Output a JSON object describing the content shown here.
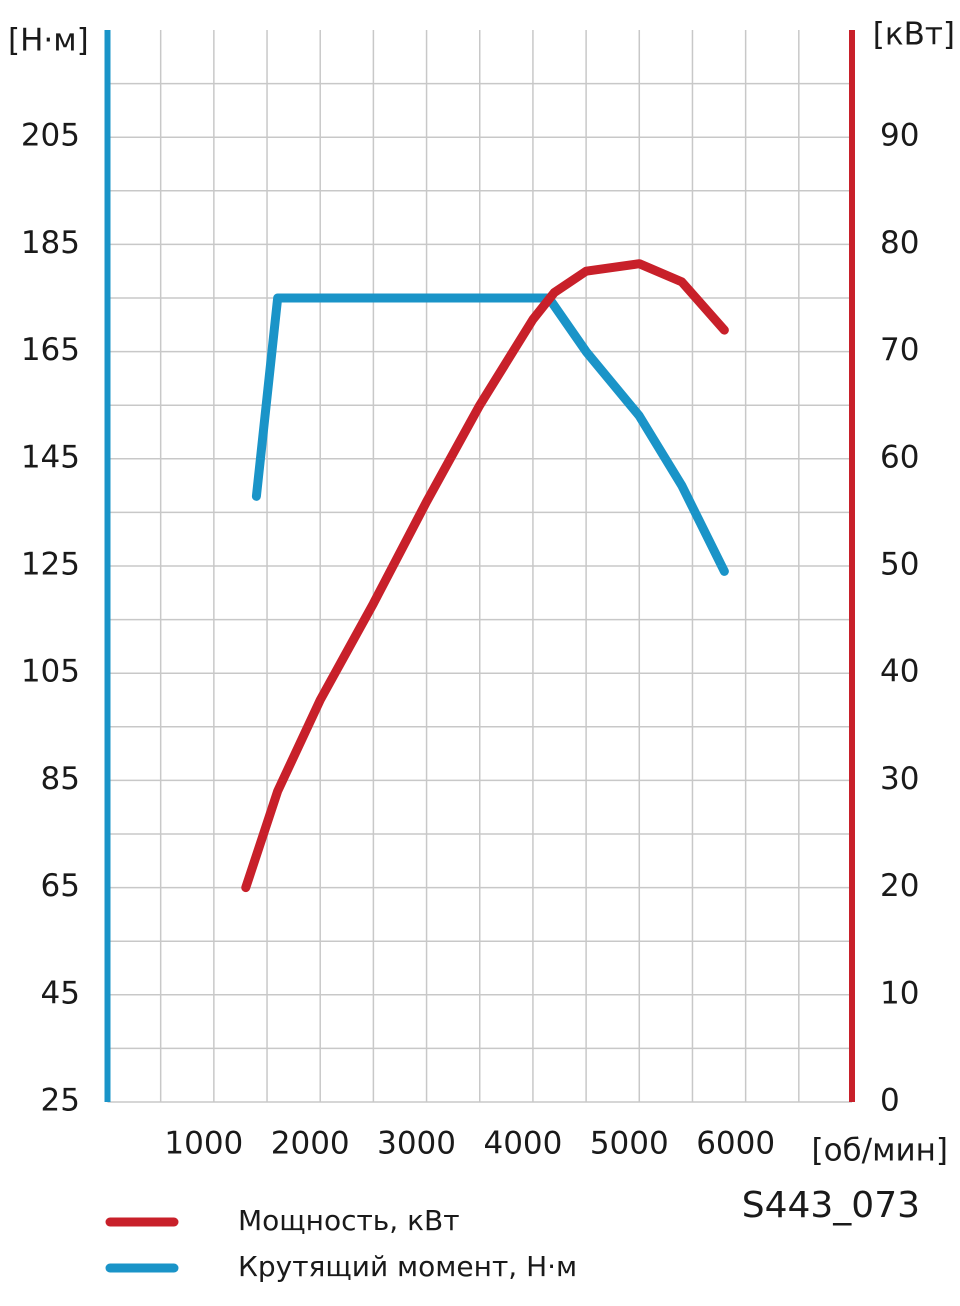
{
  "chart_data": {
    "type": "line",
    "y_label": "[Н·м]",
    "y2_label": "[кВт]",
    "x_label": "[об/мин]",
    "annotation": "S443_073",
    "xlim": [
      0,
      7000
    ],
    "xticks": [
      1000,
      2000,
      3000,
      4000,
      5000,
      6000
    ],
    "xgrid": [
      500,
      1000,
      1500,
      2000,
      2500,
      3000,
      3500,
      4000,
      4500,
      5000,
      5500,
      6000,
      6500
    ],
    "ylim": [
      25,
      225
    ],
    "yticks": [
      25,
      45,
      65,
      85,
      105,
      125,
      145,
      165,
      185,
      205
    ],
    "ygrid": [
      35,
      45,
      55,
      65,
      75,
      85,
      95,
      105,
      115,
      125,
      135,
      145,
      155,
      165,
      175,
      185,
      195,
      205,
      215
    ],
    "y2lim": [
      0,
      100
    ],
    "y2ticks": [
      0,
      10,
      20,
      30,
      40,
      50,
      60,
      70,
      80,
      90
    ],
    "y_axis_color": "#1a94c8",
    "y2_axis_color": "#c8202a",
    "grid_color": "#c8c8c8",
    "series": [
      {
        "name": "Мощность, кВт",
        "color": "#c8202a",
        "axis": "y2",
        "x": [
          1300,
          1600,
          2000,
          2500,
          3000,
          3500,
          4000,
          4200,
          4500,
          5000,
          5400,
          5800
        ],
        "values": [
          20,
          29,
          37.5,
          46.5,
          56,
          65,
          73,
          75.5,
          77.5,
          78.2,
          76.5,
          72
        ]
      },
      {
        "name": "Крутящий момент, Н·м",
        "color": "#1a94c8",
        "x": [
          1400,
          1600,
          4150,
          4500,
          5000,
          5400,
          5800
        ],
        "values": [
          138,
          175,
          175,
          165,
          153,
          140,
          124
        ]
      }
    ]
  }
}
